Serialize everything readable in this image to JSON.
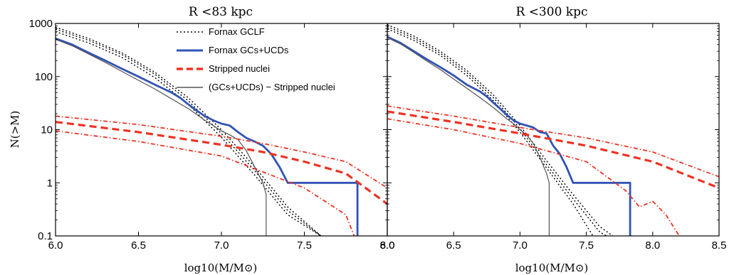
{
  "chart_data": [
    {
      "type": "line",
      "title": "R <83 kpc",
      "xlabel": "log10(M/M⊙)",
      "ylabel": "N(>M)",
      "xlim": [
        6.0,
        8.0
      ],
      "ylim": [
        0.1,
        1000
      ],
      "yscale": "log",
      "xticks": [
        "6.0",
        "6.5",
        "7.0",
        "7.5",
        "8.0"
      ],
      "yticks": [
        "0.1",
        "1",
        "10",
        "100",
        "1000"
      ],
      "legend": {
        "position": "top-center",
        "entries": [
          "Fornax GCLF",
          "Fornax GCs+UCDs",
          "Stripped nuclei",
          "(GCs+UCDs) − Stripped nuclei"
        ]
      },
      "series": [
        {
          "name": "Fornax GCLF",
          "style": "dotted",
          "color": "#000000",
          "x": [
            6.0,
            6.2,
            6.4,
            6.6,
            6.8,
            7.0,
            7.2,
            7.4,
            7.6
          ],
          "y": [
            850,
            520,
            280,
            120,
            40,
            10,
            2.0,
            0.35,
            0.1
          ]
        },
        {
          "name": "Fornax GCLF",
          "style": "dotted",
          "color": "#000000",
          "x": [
            6.0,
            6.2,
            6.4,
            6.6,
            6.8,
            7.0,
            7.2,
            7.4,
            7.6
          ],
          "y": [
            780,
            480,
            260,
            110,
            35,
            8.5,
            1.7,
            0.3,
            0.1
          ]
        },
        {
          "name": "Fornax GCLF",
          "style": "dotted",
          "color": "#000000",
          "x": [
            6.0,
            6.2,
            6.4,
            6.6,
            6.8,
            7.0,
            7.2,
            7.4,
            7.6
          ],
          "y": [
            700,
            430,
            230,
            95,
            30,
            7.2,
            1.4,
            0.25,
            0.1
          ]
        },
        {
          "name": "Fornax GCs+UCDs",
          "style": "solid",
          "color": "#3153b5",
          "x": [
            6.0,
            6.1,
            6.2,
            6.3,
            6.4,
            6.5,
            6.6,
            6.7,
            6.75,
            6.8,
            6.85,
            6.9,
            6.95,
            7.0,
            7.05,
            7.1,
            7.15,
            7.2,
            7.25,
            7.3,
            7.35,
            7.4,
            7.45,
            7.5,
            7.6,
            7.7,
            7.82,
            7.82
          ],
          "y": [
            520,
            400,
            280,
            200,
            140,
            100,
            70,
            50,
            40,
            30,
            23,
            18,
            15,
            13,
            12,
            9,
            7,
            6,
            5,
            3.5,
            2,
            1,
            1,
            1,
            1,
            1,
            1,
            0.1
          ]
        },
        {
          "name": "(GCs+UCDs) − Stripped nuclei",
          "style": "solid",
          "color": "#555555",
          "x": [
            6.0,
            6.1,
            6.2,
            6.3,
            6.4,
            6.5,
            6.6,
            6.7,
            6.8,
            6.9,
            6.95,
            7.0,
            7.05,
            7.1,
            7.15,
            7.2,
            7.25,
            7.27,
            7.27
          ],
          "y": [
            500,
            380,
            265,
            185,
            125,
            85,
            58,
            38,
            25,
            15,
            12,
            9.5,
            8,
            6.5,
            4,
            2,
            1,
            0.6,
            0.1
          ]
        },
        {
          "name": "Stripped nuclei",
          "style": "dashed",
          "color": "#ec3323",
          "x": [
            6.0,
            6.5,
            7.0,
            7.25,
            7.5,
            7.75,
            8.0
          ],
          "y": [
            14,
            9,
            5.2,
            3.8,
            2.5,
            1.5,
            0.4
          ]
        },
        {
          "name": "Stripped nuclei",
          "style": "dashdot",
          "color": "#ec3323",
          "x": [
            6.0,
            6.5,
            7.0,
            7.25,
            7.5,
            7.75,
            8.0
          ],
          "y": [
            18,
            12.5,
            7.5,
            5.5,
            3.8,
            2.5,
            0.8
          ]
        },
        {
          "name": "Stripped nuclei",
          "style": "dashdot",
          "color": "#ec3323",
          "x": [
            6.0,
            6.5,
            7.0,
            7.25,
            7.5,
            7.75,
            7.8
          ],
          "y": [
            9.5,
            6,
            3.2,
            1.6,
            0.8,
            0.25,
            0.1
          ]
        }
      ]
    },
    {
      "type": "line",
      "title": "R <300 kpc",
      "xlabel": "log10(M/M⊙)",
      "ylabel": "",
      "xlim": [
        6.0,
        8.5
      ],
      "ylim": [
        0.1,
        1000
      ],
      "yscale": "log",
      "xticks": [
        "6.0",
        "6.5",
        "7.0",
        "7.5",
        "8.0",
        "8.5"
      ],
      "series": [
        {
          "name": "Fornax GCLF",
          "style": "dotted",
          "color": "#000000",
          "x": [
            6.0,
            6.2,
            6.4,
            6.6,
            6.8,
            7.0,
            7.2,
            7.4,
            7.6,
            7.7
          ],
          "y": [
            950,
            580,
            300,
            130,
            45,
            12,
            2.6,
            0.6,
            0.15,
            0.1
          ]
        },
        {
          "name": "Fornax GCLF",
          "style": "dotted",
          "color": "#000000",
          "x": [
            6.0,
            6.2,
            6.4,
            6.6,
            6.8,
            7.0,
            7.2,
            7.4,
            7.6,
            7.65
          ],
          "y": [
            870,
            530,
            275,
            118,
            40,
            10.5,
            2.2,
            0.5,
            0.12,
            0.1
          ]
        },
        {
          "name": "Fornax GCLF",
          "style": "dotted",
          "color": "#000000",
          "x": [
            6.0,
            6.2,
            6.4,
            6.6,
            6.8,
            7.0,
            7.2,
            7.4,
            7.55
          ],
          "y": [
            790,
            480,
            250,
            105,
            35,
            9,
            1.9,
            0.4,
            0.1
          ]
        },
        {
          "name": "Fornax GCs+UCDs",
          "style": "solid",
          "color": "#3153b5",
          "x": [
            6.0,
            6.1,
            6.2,
            6.3,
            6.4,
            6.5,
            6.6,
            6.7,
            6.75,
            6.8,
            6.85,
            6.9,
            6.95,
            7.0,
            7.05,
            7.1,
            7.15,
            7.2,
            7.25,
            7.3,
            7.35,
            7.4,
            7.5,
            7.6,
            7.7,
            7.83,
            7.83
          ],
          "y": [
            560,
            430,
            300,
            210,
            150,
            105,
            70,
            52,
            42,
            32,
            25,
            19,
            15,
            13,
            12,
            11,
            9,
            8.5,
            5,
            3.5,
            2,
            1,
            1,
            1,
            1,
            1,
            0.1
          ]
        },
        {
          "name": "(GCs+UCDs) − Stripped nuclei",
          "style": "solid",
          "color": "#555555",
          "x": [
            6.0,
            6.1,
            6.2,
            6.3,
            6.4,
            6.5,
            6.6,
            6.7,
            6.8,
            6.9,
            6.95,
            7.0,
            7.05,
            7.1,
            7.15,
            7.2,
            7.22,
            7.22
          ],
          "y": [
            540,
            410,
            285,
            195,
            135,
            90,
            60,
            40,
            26,
            16,
            13,
            10,
            8,
            5.5,
            3,
            1.5,
            1,
            0.1
          ]
        },
        {
          "name": "Stripped nuclei",
          "style": "dashed",
          "color": "#ec3323",
          "x": [
            6.0,
            6.5,
            7.0,
            7.5,
            8.0,
            8.5
          ],
          "y": [
            22,
            14,
            8.5,
            5,
            2.5,
            0.8
          ]
        },
        {
          "name": "Stripped nuclei",
          "style": "dashdot",
          "color": "#ec3323",
          "x": [
            6.0,
            6.5,
            7.0,
            7.5,
            8.0,
            8.5
          ],
          "y": [
            28,
            18,
            11,
            7,
            3.8,
            1.3
          ]
        },
        {
          "name": "Stripped nuclei",
          "style": "dashdot",
          "color": "#ec3323",
          "x": [
            6.0,
            6.5,
            7.0,
            7.5,
            7.8,
            7.9,
            8.0,
            8.1,
            8.2
          ],
          "y": [
            16,
            10,
            5.5,
            2.5,
            0.7,
            0.35,
            0.45,
            0.25,
            0.1
          ]
        }
      ]
    }
  ]
}
